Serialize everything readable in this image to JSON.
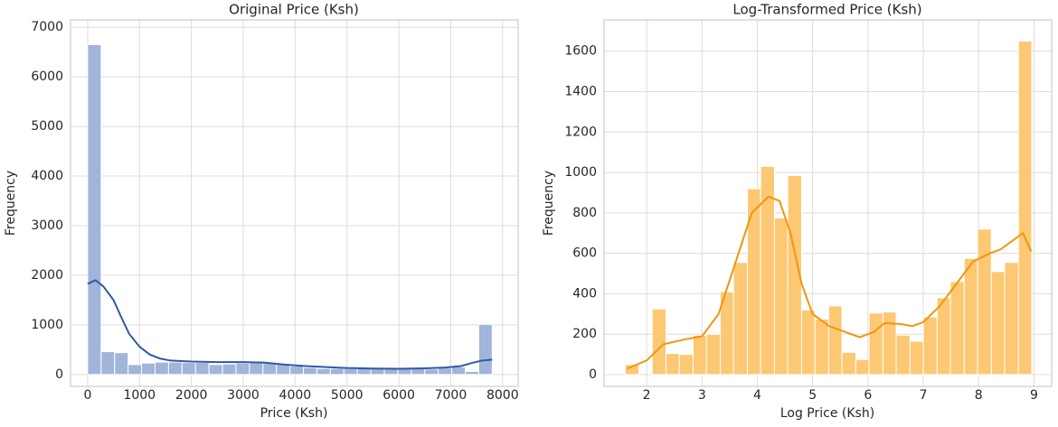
{
  "chart_data": [
    {
      "type": "histogram",
      "title": "Original Price (Ksh)",
      "x_label": "Price (Ksh)",
      "y_label": "Frequency",
      "bins": [
        0,
        260,
        520,
        780,
        1040,
        1300,
        1560,
        1820,
        2080,
        2340,
        2600,
        2860,
        3120,
        3380,
        3640,
        3900,
        4160,
        4420,
        4680,
        4940,
        5200,
        5460,
        5720,
        5980,
        6240,
        6500,
        6760,
        7020,
        7280,
        7540,
        7800
      ],
      "values": [
        6650,
        460,
        440,
        200,
        230,
        250,
        250,
        240,
        240,
        200,
        210,
        230,
        240,
        230,
        220,
        170,
        140,
        120,
        120,
        120,
        130,
        130,
        130,
        120,
        130,
        110,
        130,
        150,
        60,
        1010
      ],
      "color": "#a1b4da",
      "edge_color": "#ffffff",
      "kde": {
        "color": "#2f5aa3",
        "x": [
          0,
          150,
          300,
          500,
          650,
          800,
          1000,
          1200,
          1400,
          1600,
          2000,
          2500,
          3000,
          3400,
          3800,
          4200,
          4600,
          5000,
          5500,
          6000,
          6500,
          6900,
          7200,
          7400,
          7600,
          7800
        ],
        "values": [
          1830,
          1900,
          1780,
          1500,
          1150,
          820,
          560,
          400,
          320,
          280,
          260,
          250,
          250,
          240,
          200,
          170,
          150,
          130,
          120,
          115,
          125,
          140,
          170,
          230,
          280,
          300
        ]
      },
      "xlim": [
        -330,
        8300
      ],
      "xticks": [
        0,
        1000,
        2000,
        3000,
        4000,
        5000,
        6000,
        7000,
        8000
      ],
      "ylim": [
        -240,
        7150
      ],
      "yticks": [
        0,
        1000,
        2000,
        3000,
        4000,
        5000,
        6000,
        7000
      ],
      "grid": true
    },
    {
      "type": "histogram",
      "title": "Log-Transformed Price (Ksh)",
      "x_label": "Log Price (Ksh)",
      "y_label": "Frequency",
      "bins": [
        1.61,
        1.86,
        2.1,
        2.35,
        2.59,
        2.84,
        3.08,
        3.33,
        3.57,
        3.82,
        4.06,
        4.31,
        4.55,
        4.8,
        5.04,
        5.29,
        5.53,
        5.78,
        6.02,
        6.27,
        6.51,
        6.76,
        7.0,
        7.25,
        7.49,
        7.74,
        7.98,
        8.23,
        8.47,
        8.72,
        8.96
      ],
      "values": [
        50,
        0,
        325,
        105,
        100,
        195,
        200,
        410,
        555,
        920,
        1030,
        775,
        985,
        320,
        275,
        340,
        110,
        75,
        305,
        310,
        195,
        165,
        285,
        380,
        460,
        575,
        720,
        510,
        555,
        1650
      ],
      "color": "#fdc874",
      "edge_color": "#ffffff",
      "kde": {
        "color": "#f0960e",
        "x": [
          1.65,
          2.0,
          2.3,
          2.7,
          3.0,
          3.3,
          3.6,
          3.9,
          4.2,
          4.4,
          4.6,
          4.8,
          5.0,
          5.3,
          5.6,
          5.85,
          6.1,
          6.3,
          6.6,
          6.8,
          7.0,
          7.3,
          7.6,
          7.9,
          8.2,
          8.4,
          8.6,
          8.8,
          8.95
        ],
        "values": [
          30,
          70,
          150,
          175,
          190,
          300,
          550,
          800,
          880,
          860,
          700,
          450,
          300,
          240,
          210,
          185,
          210,
          255,
          250,
          240,
          260,
          340,
          450,
          560,
          600,
          620,
          660,
          700,
          610
        ]
      },
      "xlim": [
        1.23,
        9.32
      ],
      "xticks": [
        2,
        3,
        4,
        5,
        6,
        7,
        8,
        9
      ],
      "ylim": [
        -58,
        1755
      ],
      "yticks": [
        0,
        200,
        400,
        600,
        800,
        1000,
        1200,
        1400,
        1600
      ],
      "grid": true
    }
  ]
}
